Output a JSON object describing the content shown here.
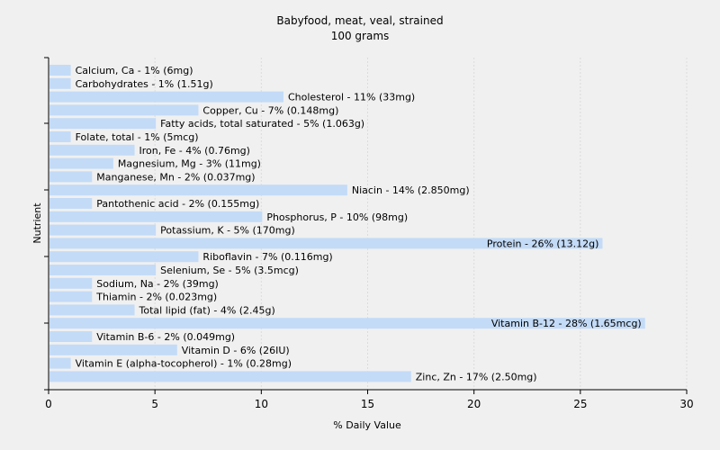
{
  "chart_data": {
    "type": "bar",
    "orientation": "horizontal",
    "title": "Babyfood, meat, veal, strained",
    "subtitle": "100 grams",
    "xlabel": "% Daily Value",
    "ylabel": "Nutrient",
    "xlim": [
      0,
      30
    ],
    "xticks": [
      0,
      5,
      10,
      15,
      20,
      25,
      30
    ],
    "grid": true,
    "bar_color": "#c3dbf7",
    "categories": [
      "Calcium, Ca",
      "Carbohydrates",
      "Cholesterol",
      "Copper, Cu",
      "Fatty acids, total saturated",
      "Folate, total",
      "Iron, Fe",
      "Magnesium, Mg",
      "Manganese, Mn",
      "Niacin",
      "Pantothenic acid",
      "Phosphorus, P",
      "Potassium, K",
      "Protein",
      "Riboflavin",
      "Selenium, Se",
      "Sodium, Na",
      "Thiamin",
      "Total lipid (fat)",
      "Vitamin B-12",
      "Vitamin B-6",
      "Vitamin D",
      "Vitamin E (alpha-tocopherol)",
      "Zinc, Zn"
    ],
    "values": [
      1,
      1,
      11,
      7,
      5,
      1,
      4,
      3,
      2,
      14,
      2,
      10,
      5,
      26,
      7,
      5,
      2,
      2,
      4,
      28,
      2,
      6,
      1,
      17
    ],
    "labels": [
      "Calcium, Ca - 1% (6mg)",
      "Carbohydrates - 1% (1.51g)",
      "Cholesterol - 11% (33mg)",
      "Copper, Cu - 7% (0.148mg)",
      "Fatty acids, total saturated - 5% (1.063g)",
      "Folate, total - 1% (5mcg)",
      "Iron, Fe - 4% (0.76mg)",
      "Magnesium, Mg - 3% (11mg)",
      "Manganese, Mn - 2% (0.037mg)",
      "Niacin - 14% (2.850mg)",
      "Pantothenic acid - 2% (0.155mg)",
      "Phosphorus, P - 10% (98mg)",
      "Potassium, K - 5% (170mg)",
      "Protein - 26% (13.12g)",
      "Riboflavin - 7% (0.116mg)",
      "Selenium, Se - 5% (3.5mcg)",
      "Sodium, Na - 2% (39mg)",
      "Thiamin - 2% (0.023mg)",
      "Total lipid (fat) - 4% (2.45g)",
      "Vitamin B-12 - 28% (1.65mcg)",
      "Vitamin B-6 - 2% (0.049mg)",
      "Vitamin D - 6% (26IU)",
      "Vitamin E (alpha-tocopherol) - 1% (0.28mg)",
      "Zinc, Zn - 17% (2.50mg)"
    ]
  }
}
